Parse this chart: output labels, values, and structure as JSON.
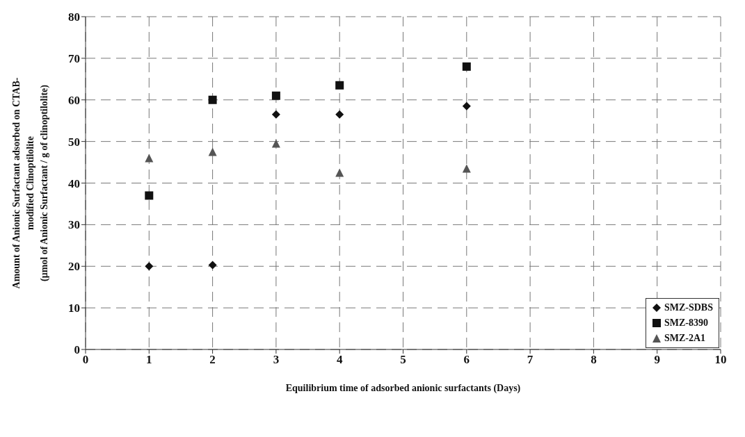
{
  "chart_data": {
    "type": "scatter",
    "xlabel": "Equilibrium time of adsorbed anionic surfactants (Days)",
    "ylabel": "Amount of Anionic Surfactant adsorbed on CTAB-\nmodified Clinoptilolite\n(μmol  of Anionic Surfactant / g of clinoptilolite)",
    "x": [
      1,
      2,
      3,
      4,
      6
    ],
    "series": [
      {
        "name": "SMZ-SDBS",
        "color": "#111111",
        "marker": "diamond",
        "values": [
          20,
          20.3,
          56.5,
          56.5,
          58.5
        ]
      },
      {
        "name": "SMZ-8390",
        "color": "#111111",
        "marker": "square",
        "values": [
          37,
          60,
          61,
          63.5,
          68
        ]
      },
      {
        "name": "SMZ-2A1",
        "color": "#555555",
        "marker": "triangle",
        "values": [
          46,
          47.5,
          49.5,
          42.5,
          43.5
        ]
      }
    ],
    "xlim": [
      0,
      10
    ],
    "xticks": [
      0,
      1,
      2,
      3,
      4,
      5,
      6,
      7,
      8,
      9,
      10
    ],
    "ylim": [
      0,
      80
    ],
    "yticks": [
      0,
      10,
      20,
      30,
      40,
      50,
      60,
      70,
      80
    ],
    "grid": true,
    "legend": "bottom right"
  }
}
